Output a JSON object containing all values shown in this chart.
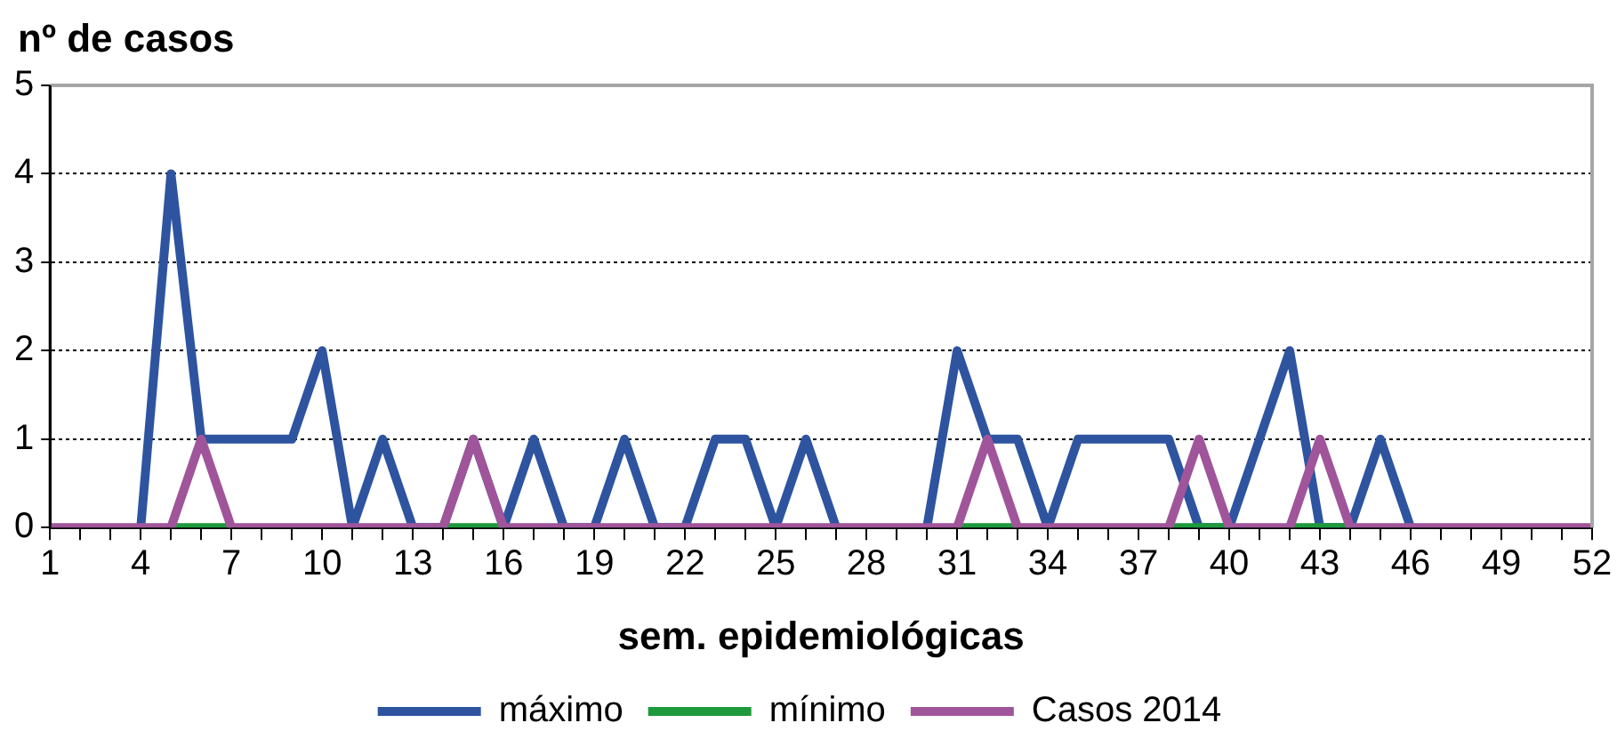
{
  "chart_data": {
    "type": "line",
    "ylabel": "nº de casos",
    "xlabel": "sem. epidemiológicas",
    "categories": [
      "1",
      null,
      null,
      "4",
      null,
      null,
      "7",
      null,
      null,
      "10",
      null,
      null,
      "13",
      null,
      null,
      "16",
      null,
      null,
      "19",
      null,
      null,
      "22",
      null,
      null,
      "25",
      null,
      null,
      "28",
      null,
      null,
      "31",
      null,
      null,
      "34",
      null,
      null,
      "37",
      null,
      null,
      "40",
      null,
      null,
      "43",
      null,
      null,
      "46",
      null,
      null,
      "49",
      null,
      null,
      "52"
    ],
    "series": [
      {
        "name": "máximo",
        "color": "#2e54a0",
        "values": [
          null,
          null,
          null,
          0,
          4,
          1,
          1,
          1,
          1,
          2,
          0,
          1,
          0,
          0,
          1,
          0,
          1,
          0,
          0,
          1,
          0,
          0,
          1,
          1,
          0,
          1,
          0,
          null,
          null,
          0,
          2,
          1,
          1,
          0,
          1,
          1,
          1,
          1,
          0,
          0,
          1,
          2,
          0,
          0,
          1,
          0,
          null,
          null,
          null,
          null,
          null,
          null
        ]
      },
      {
        "name": "mínimo",
        "color": "#1e9a3c",
        "values": [
          null,
          null,
          null,
          null,
          0,
          0,
          0,
          null,
          null,
          null,
          null,
          null,
          null,
          0,
          0,
          0,
          null,
          null,
          null,
          null,
          null,
          null,
          null,
          null,
          null,
          null,
          null,
          null,
          null,
          null,
          0,
          0,
          0,
          null,
          null,
          null,
          null,
          0,
          0,
          0,
          null,
          0,
          0,
          0,
          null,
          null,
          null,
          null,
          null,
          null,
          null,
          null
        ]
      },
      {
        "name": "Casos 2014",
        "color": "#a0559a",
        "values": [
          0,
          0,
          0,
          0,
          0,
          1,
          0,
          0,
          0,
          0,
          0,
          0,
          0,
          0,
          1,
          0,
          0,
          0,
          0,
          0,
          0,
          0,
          0,
          0,
          0,
          0,
          0,
          0,
          0,
          0,
          0,
          1,
          0,
          0,
          0,
          0,
          0,
          0,
          1,
          0,
          0,
          0,
          1,
          0,
          0,
          0,
          0,
          0,
          0,
          0,
          0,
          0
        ]
      }
    ],
    "ylim": [
      0,
      5
    ],
    "yticks": [
      0,
      1,
      2,
      3,
      4,
      5
    ],
    "grid": "y",
    "legend": "bottom",
    "marker": "none",
    "line_style": "solid"
  }
}
